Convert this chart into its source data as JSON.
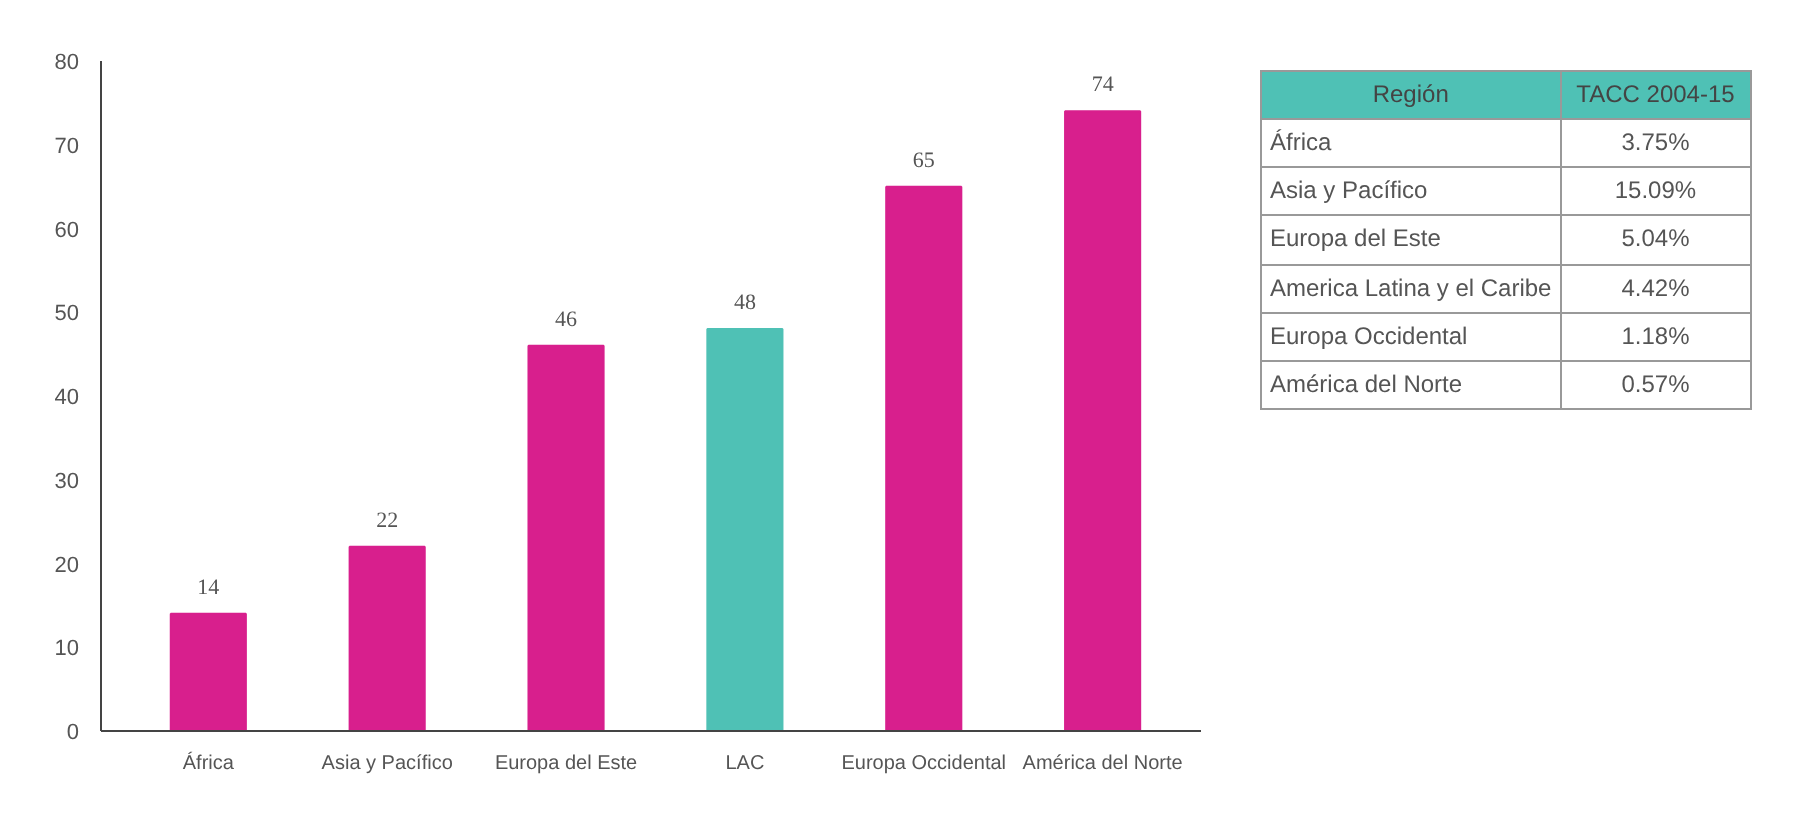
{
  "chart_data": [
    {
      "type": "bar",
      "categories": [
        "África",
        "Asia y Pacífico",
        "Europa del Este",
        "LAC",
        "Europa Occidental",
        "América del Norte"
      ],
      "values": [
        14,
        22,
        46,
        48,
        65,
        74
      ],
      "colors": [
        "#d81f8d",
        "#d81f8d",
        "#d81f8d",
        "#4fc1b5",
        "#d81f8d",
        "#d81f8d"
      ],
      "ylim": [
        0,
        80
      ],
      "yticks": [
        0,
        10,
        20,
        30,
        40,
        50,
        60,
        70,
        80
      ],
      "grid": false,
      "data_labels": true
    },
    {
      "type": "other",
      "color": "#4fc1b5",
      "annotations": [
        "Región",
        "TACC 2004-15"
      ],
      "categories": [
        "África",
        "Asia y Pacífico",
        "Europa del Este",
        "America Latina y el Caribe",
        "Europa Occidental",
        "América del Norte"
      ],
      "value_labels": [
        "3.75%",
        "15.09%",
        "5.04%",
        "4.42%",
        "1.18%",
        "0.57%"
      ]
    }
  ]
}
